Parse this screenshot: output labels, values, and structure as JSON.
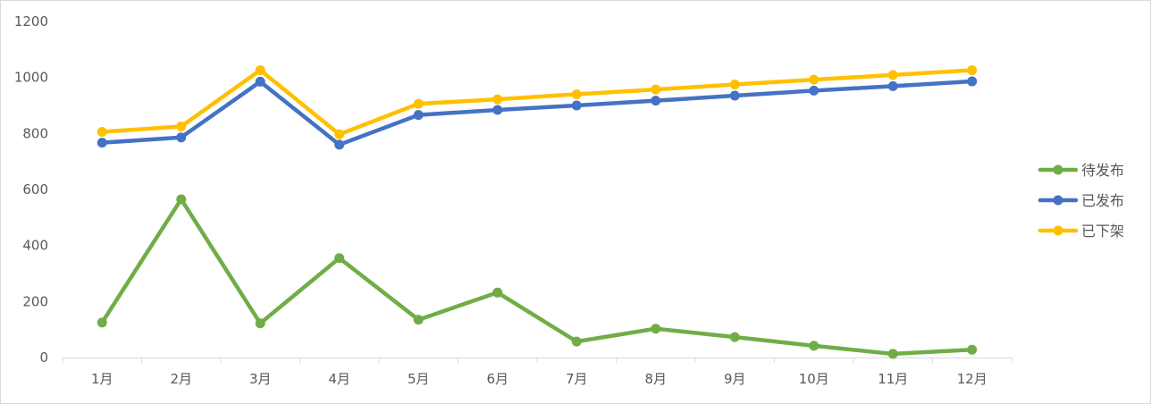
{
  "chart_data": {
    "type": "line",
    "categories": [
      "1月",
      "2月",
      "3月",
      "4月",
      "5月",
      "6月",
      "7月",
      "8月",
      "9月",
      "10月",
      "11月",
      "12月"
    ],
    "ylim": [
      0,
      1200
    ],
    "yticks": [
      0,
      200,
      400,
      600,
      800,
      1000,
      1200
    ],
    "grid": false,
    "legend_position": "right",
    "series": [
      {
        "name": "待发布",
        "color": "#70ad47",
        "values": [
          125,
          565,
          122,
          355,
          135,
          232,
          57,
          103,
          73,
          42,
          13,
          28
        ]
      },
      {
        "name": "已发布",
        "color": "#4472c4",
        "values": [
          767,
          786,
          985,
          760,
          866,
          884,
          900,
          917,
          935,
          953,
          969,
          986
        ]
      },
      {
        "name": "已下架",
        "color": "#ffc000",
        "values": [
          806,
          825,
          1026,
          797,
          906,
          922,
          940,
          957,
          975,
          992,
          1009,
          1026
        ]
      }
    ]
  }
}
